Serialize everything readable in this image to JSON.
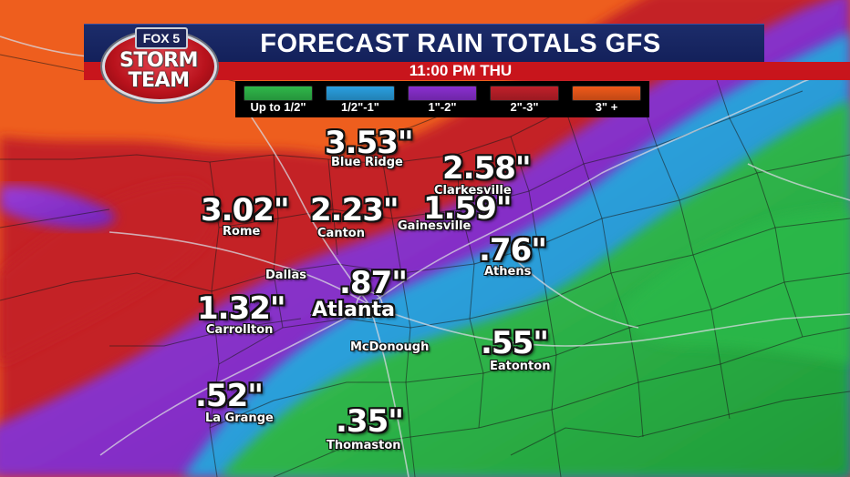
{
  "header": {
    "title": "FORECAST RAIN TOTALS GFS",
    "time": "11:00 PM THU"
  },
  "logo": {
    "network": "FOX 5",
    "line1": "STORM",
    "line2": "TEAM"
  },
  "legend": [
    {
      "label": "Up to 1/2\"",
      "color": "#2fb84a"
    },
    {
      "label": "1/2\"-1\"",
      "color": "#2aa0e0"
    },
    {
      "label": "1\"-2\"",
      "color": "#8a2fd0"
    },
    {
      "label": "2\"-3\"",
      "color": "#c0202a"
    },
    {
      "label": "3\" +",
      "color": "#f05a1a"
    }
  ],
  "locations": {
    "blue_ridge": {
      "value": "3.53\"",
      "city": "Blue Ridge"
    },
    "clarkesville": {
      "value": "2.58\"",
      "city": "Clarkesville"
    },
    "rome": {
      "value": "3.02\"",
      "city": "Rome"
    },
    "canton": {
      "value": "2.23\"",
      "city": "Canton"
    },
    "gainesville": {
      "value": "1.59\"",
      "city": "Gainesville"
    },
    "athens": {
      "value": ".76\"",
      "city": "Athens"
    },
    "dallas": {
      "city": "Dallas"
    },
    "atlanta": {
      "value": ".87\"",
      "city": "Atlanta"
    },
    "carrollton": {
      "value": "1.32\"",
      "city": "Carrollton"
    },
    "mcdonough": {
      "city": "McDonough"
    },
    "eatonton": {
      "value": ".55\"",
      "city": "Eatonton"
    },
    "la_grange": {
      "value": ".52\"",
      "city": "La Grange"
    },
    "thomaston": {
      "value": ".35\"",
      "city": "Thomaston"
    }
  }
}
